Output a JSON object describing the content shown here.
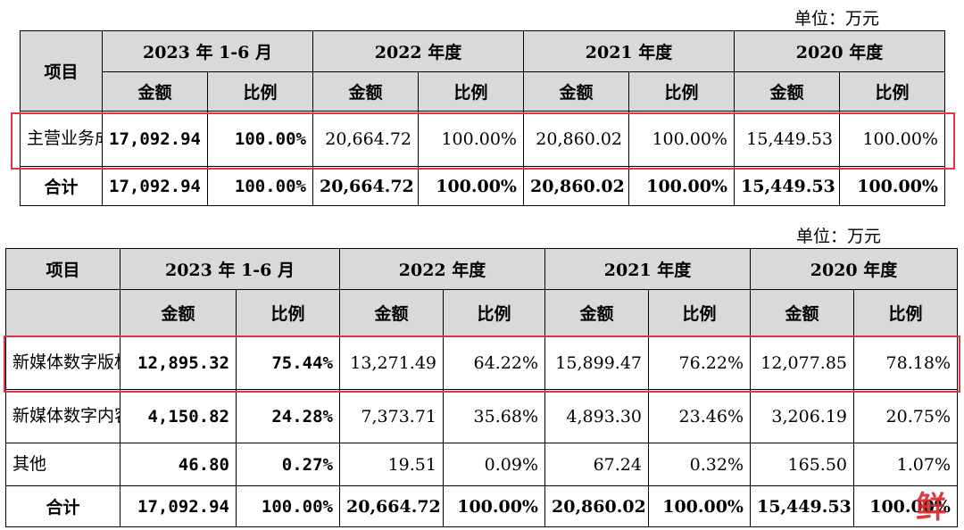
{
  "table1": {
    "unit": "单位：万元",
    "item_header": "项目",
    "periods": [
      "2023 年 1-6 月",
      "2022 年度",
      "2021 年度",
      "2020 年度"
    ],
    "amount_label": "金额",
    "ratio_label": "比例",
    "rows": [
      {
        "label": "主营业务成本",
        "cells": [
          "17,092.94",
          "100.00%",
          "20,664.72",
          "100.00%",
          "20,860.02",
          "100.00%",
          "15,449.53",
          "100.00%"
        ]
      }
    ],
    "total": {
      "label": "合计",
      "cells": [
        "17,092.94",
        "100.00%",
        "20,664.72",
        "100.00%",
        "20,860.02",
        "100.00%",
        "15,449.53",
        "100.00%"
      ]
    }
  },
  "table2": {
    "unit": "单位：万元",
    "item_header": "项目",
    "periods": [
      "2023 年 1-6 月",
      "2022 年度",
      "2021 年度",
      "2020 年度"
    ],
    "amount_label": "金额",
    "ratio_label": "比例",
    "rows": [
      {
        "label": "新媒体数字版权分销",
        "cells": [
          "12,895.32",
          "75.44%",
          "13,271.49",
          "64.22%",
          "15,899.47",
          "76.22%",
          "12,077.85",
          "78.18%"
        ]
      },
      {
        "label": "新媒体数字内容提供",
        "cells": [
          "4,150.82",
          "24.28%",
          "7,373.71",
          "35.68%",
          "4,893.30",
          "23.46%",
          "3,206.19",
          "20.75%"
        ]
      },
      {
        "label": "其他",
        "cells": [
          "46.80",
          "0.27%",
          "19.51",
          "0.09%",
          "67.24",
          "0.32%",
          "165.50",
          "1.07%"
        ]
      }
    ],
    "total": {
      "label": "合计",
      "cells": [
        "17,092.94",
        "100.00%",
        "20,664.72",
        "100.00%",
        "20,860.02",
        "100.00%",
        "15,449.53",
        "100.00%"
      ]
    }
  },
  "watermark": "鲜"
}
